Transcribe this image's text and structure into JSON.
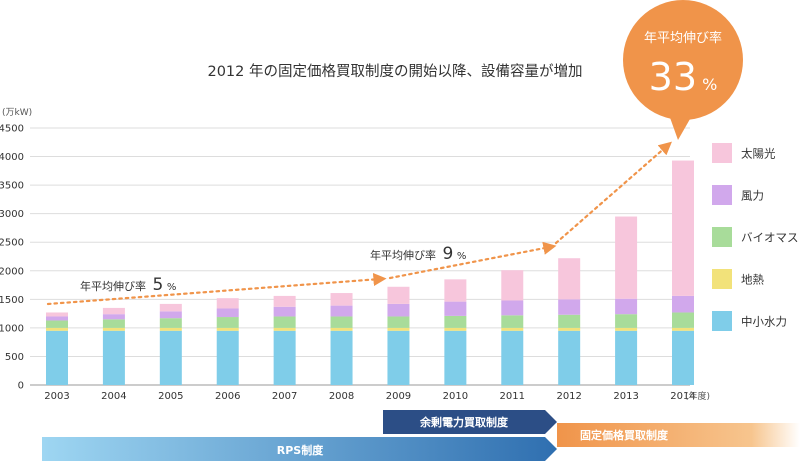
{
  "chart_data": {
    "type": "bar",
    "stacked": true,
    "title": "2012 年の固定価格買取制度の開始以降、設備容量が増加",
    "unit_label": "(万kW)",
    "x_unit_label": "(年度)",
    "categories": [
      "2003",
      "2004",
      "2005",
      "2006",
      "2007",
      "2008",
      "2009",
      "2010",
      "2011",
      "2012",
      "2013",
      "2014"
    ],
    "ylim": [
      0,
      4500
    ],
    "yticks": [
      "0",
      "500",
      "1000",
      "1500",
      "2000",
      "2500",
      "3000",
      "3500",
      "4000",
      "4500"
    ],
    "grid": true,
    "legend_position": "right",
    "series": [
      {
        "name": "中小水力",
        "color": "#7fcde9",
        "values": [
          950,
          950,
          950,
          950,
          950,
          950,
          950,
          950,
          950,
          950,
          950,
          950
        ]
      },
      {
        "name": "地熱",
        "color": "#f2e27a",
        "values": [
          50,
          50,
          50,
          50,
          50,
          50,
          50,
          50,
          50,
          50,
          50,
          50
        ]
      },
      {
        "name": "バイオマス",
        "color": "#a8dc9a",
        "values": [
          130,
          150,
          170,
          190,
          200,
          200,
          200,
          210,
          220,
          230,
          240,
          270
        ]
      },
      {
        "name": "風力",
        "color": "#d1a8ec",
        "values": [
          70,
          90,
          120,
          150,
          170,
          190,
          220,
          250,
          260,
          270,
          270,
          290
        ]
      },
      {
        "name": "太陽光",
        "color": "#f7c6dc",
        "values": [
          70,
          110,
          130,
          180,
          190,
          220,
          300,
          390,
          530,
          720,
          1440,
          2370
        ]
      }
    ],
    "annotations": {
      "growth_5": {
        "label": "年平均伸び率",
        "value": "5",
        "unit": "%"
      },
      "growth_9": {
        "label": "年平均伸び率",
        "value": "9",
        "unit": "%"
      },
      "growth_33": {
        "label": "年平均伸び率",
        "value": "33",
        "unit": "%"
      },
      "trend_color": "#f0944a",
      "bubble_color": "#f0944a"
    },
    "policy_bars": [
      {
        "label": "RPS制度",
        "start": "2003",
        "end": "2012",
        "color": "#4a8bc2"
      },
      {
        "label": "余剰電力買取制度",
        "start": "2009",
        "end": "2012",
        "color": "#2c4e86"
      },
      {
        "label": "固定価格買取制度",
        "start": "2012",
        "end": "2014",
        "color": "#f0944a"
      }
    ]
  }
}
